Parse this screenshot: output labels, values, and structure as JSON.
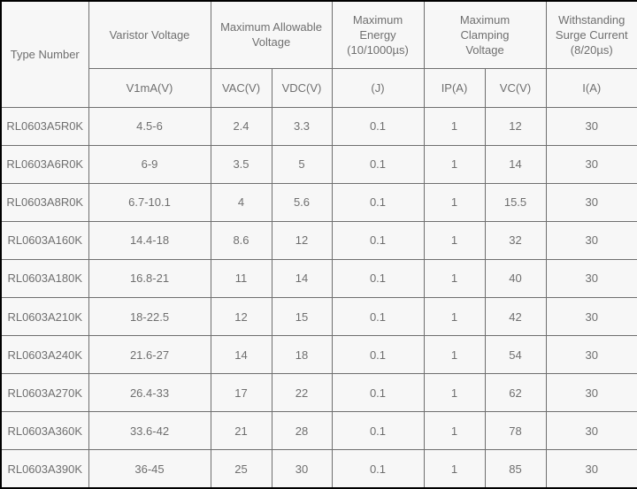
{
  "table": {
    "title_semantic": "Varistor specification table",
    "columns": {
      "type_number": "Type Number",
      "varistor_voltage": "Varistor Voltage",
      "max_allowable_voltage": "Maximum Allowable\nVoltage",
      "max_energy": "Maximum\nEnergy\n(10/1000µs)",
      "max_clamping_voltage": "Maximum\nClamping\nVoltage",
      "withstanding_surge_current": "Withstanding\nSurge Current\n(8/20µs)"
    },
    "sub_headers": [
      "V1mA(V)",
      "VAC(V)",
      "VDC(V)",
      "(J)",
      "IP(A)",
      "VC(V)",
      "I(A)"
    ],
    "rows": [
      [
        "RL0603A5R0K",
        "4.5-6",
        "2.4",
        "3.3",
        "0.1",
        "1",
        "12",
        "30"
      ],
      [
        "RL0603A6R0K",
        "6-9",
        "3.5",
        "5",
        "0.1",
        "1",
        "14",
        "30"
      ],
      [
        "RL0603A8R0K",
        "6.7-10.1",
        "4",
        "5.6",
        "0.1",
        "1",
        "15.5",
        "30"
      ],
      [
        "RL0603A160K",
        "14.4-18",
        "8.6",
        "12",
        "0.1",
        "1",
        "32",
        "30"
      ],
      [
        "RL0603A180K",
        "16.8-21",
        "11",
        "14",
        "0.1",
        "1",
        "40",
        "30"
      ],
      [
        "RL0603A210K",
        "18-22.5",
        "12",
        "15",
        "0.1",
        "1",
        "42",
        "30"
      ],
      [
        "RL0603A240K",
        "21.6-27",
        "14",
        "18",
        "0.1",
        "1",
        "54",
        "30"
      ],
      [
        "RL0603A270K",
        "26.4-33",
        "17",
        "22",
        "0.1",
        "1",
        "62",
        "30"
      ],
      [
        "RL0603A360K",
        "33.6-42",
        "21",
        "28",
        "0.1",
        "1",
        "78",
        "30"
      ],
      [
        "RL0603A390K",
        "36-45",
        "25",
        "30",
        "0.1",
        "1",
        "85",
        "30"
      ]
    ],
    "colors": {
      "background": "#f7f7f7",
      "outer_border": "#000000",
      "inner_border": "#6f6f6f",
      "text": "#6f6f6f"
    }
  }
}
